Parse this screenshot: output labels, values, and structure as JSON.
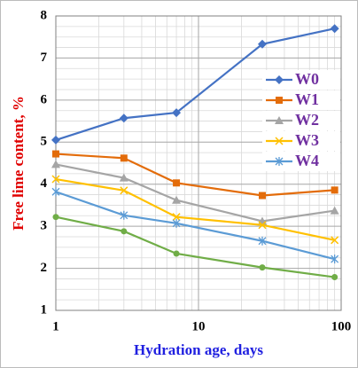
{
  "chart_data": {
    "type": "line",
    "x_label": "Hydration age, days",
    "y_label": "Free lime content, %",
    "x": [
      1,
      3,
      7,
      28,
      90
    ],
    "xscale": "log",
    "xlim": [
      1,
      100
    ],
    "xticks": [
      1,
      10,
      100
    ],
    "ylim": [
      1,
      8
    ],
    "yticks": [
      1,
      2,
      3,
      4,
      5,
      6,
      7,
      8
    ],
    "grid": true,
    "legend": "right",
    "series": [
      {
        "name": "W0",
        "color": "#4472c4",
        "marker": "diamond",
        "values": [
          5.05,
          5.57,
          5.7,
          7.33,
          7.7
        ]
      },
      {
        "name": "W1",
        "color": "#e36c0a",
        "marker": "square",
        "values": [
          4.72,
          4.62,
          4.03,
          3.73,
          3.86
        ]
      },
      {
        "name": "W2",
        "color": "#a5a5a5",
        "marker": "triangle",
        "values": [
          4.47,
          4.15,
          3.62,
          3.12,
          3.37
        ]
      },
      {
        "name": "W3",
        "color": "#ffc000",
        "marker": "x",
        "values": [
          4.12,
          3.85,
          3.22,
          3.03,
          2.67
        ]
      },
      {
        "name": "W4",
        "color": "#5b9bd5",
        "marker": "star",
        "values": [
          3.82,
          3.26,
          3.07,
          2.65,
          2.22
        ]
      },
      {
        "color": "#70ad47",
        "marker": "circle",
        "values": [
          3.22,
          2.88,
          2.35,
          2.02,
          1.79
        ]
      }
    ]
  }
}
